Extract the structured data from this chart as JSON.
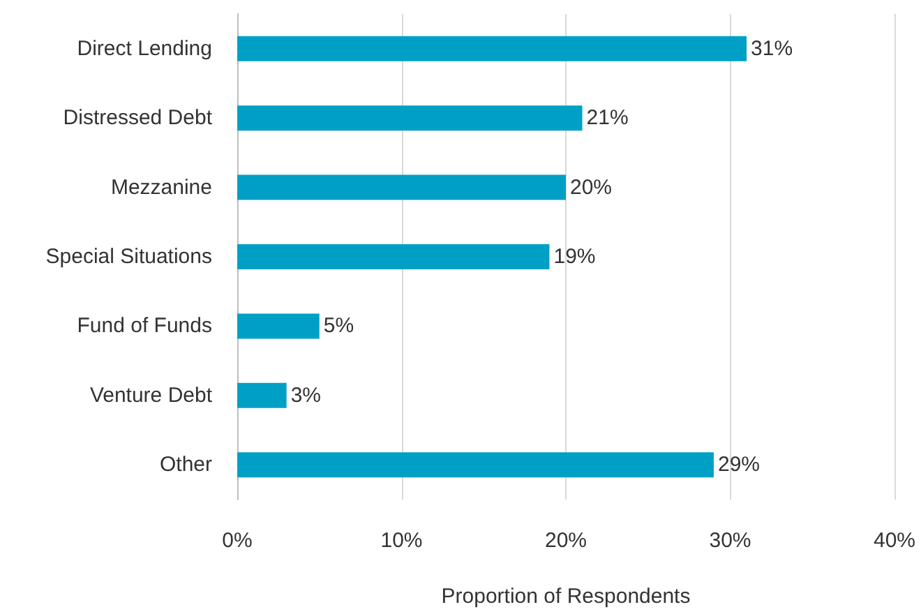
{
  "chart_data": {
    "type": "bar",
    "orientation": "horizontal",
    "xlabel": "Proportion of Respondents",
    "categories": [
      "Direct Lending",
      "Distressed Debt",
      "Mezzanine",
      "Special Situations",
      "Fund of Funds",
      "Venture Debt",
      "Other"
    ],
    "values": [
      31,
      21,
      20,
      19,
      5,
      3,
      29
    ],
    "value_labels": [
      "31%",
      "21%",
      "20%",
      "19%",
      "5%",
      "3%",
      "29%"
    ],
    "color": "#00a0c6",
    "xlim": [
      0,
      40
    ],
    "xticks": [
      {
        "value": 0,
        "label": "0%"
      },
      {
        "value": 10,
        "label": "10%"
      },
      {
        "value": 20,
        "label": "20%"
      },
      {
        "value": 30,
        "label": "30%"
      },
      {
        "value": 40,
        "label": "40%"
      }
    ],
    "grid": "x"
  }
}
